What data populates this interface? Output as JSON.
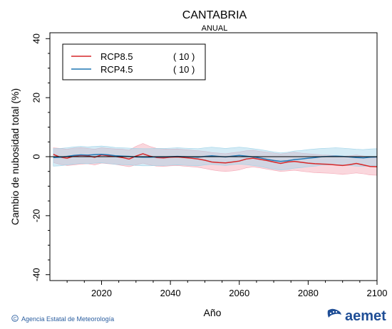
{
  "header": {
    "title": "CANTABRIA",
    "subtitle": "ANUAL"
  },
  "chart_data": {
    "type": "line",
    "ylabel": "Cambio de nubosidad total (%)",
    "xlabel": "Año",
    "xlim": [
      2005,
      2100
    ],
    "ylim": [
      -42,
      42
    ],
    "xticks": [
      2020,
      2040,
      2060,
      2080,
      2100
    ],
    "yticks": [
      40,
      20,
      0,
      -20,
      -40
    ],
    "grid": false,
    "legend_position": "top-left",
    "series": [
      {
        "name": "RCP8.5",
        "count": "( 10 )",
        "color": "#d62728",
        "band_color": "#f4a6b4",
        "x": [
          2006,
          2008,
          2010,
          2012,
          2014,
          2016,
          2018,
          2020,
          2022,
          2024,
          2026,
          2028,
          2030,
          2032,
          2034,
          2036,
          2038,
          2040,
          2042,
          2044,
          2046,
          2048,
          2050,
          2052,
          2054,
          2056,
          2058,
          2060,
          2062,
          2064,
          2066,
          2068,
          2070,
          2072,
          2074,
          2076,
          2078,
          2080,
          2082,
          2084,
          2086,
          2088,
          2090,
          2092,
          2094,
          2096,
          2098,
          2100
        ],
        "y": [
          0.8,
          -0.2,
          -0.5,
          0.2,
          0.4,
          0.3,
          -0.2,
          0.6,
          0.3,
          0.1,
          -0.3,
          -0.8,
          0.2,
          1.0,
          0.2,
          -0.3,
          -0.4,
          -0.2,
          -0.1,
          -0.3,
          -0.5,
          -0.8,
          -1.2,
          -1.8,
          -2.0,
          -2.1,
          -1.8,
          -1.5,
          -0.8,
          -0.5,
          -0.9,
          -1.3,
          -1.8,
          -2.3,
          -1.8,
          -1.6,
          -1.9,
          -2.2,
          -2.4,
          -2.5,
          -2.6,
          -2.8,
          -3.0,
          -2.7,
          -2.3,
          -2.8,
          -3.3,
          -3.4
        ],
        "upper": [
          3.0,
          2.8,
          2.5,
          2.9,
          3.1,
          2.8,
          2.5,
          3.0,
          2.8,
          2.6,
          2.5,
          2.2,
          3.5,
          4.5,
          3.5,
          2.8,
          2.6,
          2.5,
          2.6,
          2.4,
          2.2,
          2.0,
          1.8,
          1.4,
          1.2,
          1.0,
          1.3,
          1.6,
          2.0,
          2.2,
          1.8,
          1.5,
          1.2,
          0.9,
          1.2,
          1.5,
          1.2,
          1.0,
          0.8,
          0.6,
          0.5,
          0.3,
          0.1,
          0.3,
          0.6,
          0.2,
          -0.2,
          -0.5
        ],
        "lower": [
          -2.0,
          -2.6,
          -3.0,
          -2.8,
          -2.5,
          -2.4,
          -2.8,
          -2.2,
          -2.4,
          -2.6,
          -3.0,
          -3.4,
          -2.8,
          -2.2,
          -2.8,
          -3.2,
          -3.3,
          -3.1,
          -3.0,
          -3.2,
          -3.4,
          -3.6,
          -4.0,
          -4.5,
          -4.8,
          -5.0,
          -4.8,
          -4.5,
          -3.8,
          -3.5,
          -3.8,
          -4.2,
          -4.6,
          -5.0,
          -4.8,
          -4.6,
          -4.9,
          -5.2,
          -5.4,
          -5.5,
          -5.6,
          -5.8,
          -6.0,
          -5.8,
          -5.5,
          -5.8,
          -6.2,
          -6.3
        ]
      },
      {
        "name": "RCP4.5",
        "count": "( 10 )",
        "color": "#1f77b4",
        "band_color": "#9fd3e8",
        "x": [
          2006,
          2008,
          2010,
          2012,
          2014,
          2016,
          2018,
          2020,
          2022,
          2024,
          2026,
          2028,
          2030,
          2032,
          2034,
          2036,
          2038,
          2040,
          2042,
          2044,
          2046,
          2048,
          2050,
          2052,
          2054,
          2056,
          2058,
          2060,
          2062,
          2064,
          2066,
          2068,
          2070,
          2072,
          2074,
          2076,
          2078,
          2080,
          2082,
          2084,
          2086,
          2088,
          2090,
          2092,
          2094,
          2096,
          2098,
          2100
        ],
        "y": [
          -0.3,
          -0.2,
          0.1,
          0.4,
          0.6,
          0.5,
          0.7,
          0.8,
          0.6,
          0.3,
          0.2,
          0.1,
          -0.1,
          -0.2,
          -0.2,
          -0.1,
          -0.1,
          0.0,
          0.1,
          0.0,
          -0.1,
          -0.2,
          0.1,
          0.3,
          0.1,
          -0.1,
          0.2,
          0.4,
          0.2,
          -0.1,
          -0.4,
          -0.9,
          -1.3,
          -1.6,
          -1.4,
          -1.0,
          -0.8,
          -0.5,
          -0.3,
          0.0,
          0.1,
          0.2,
          0.1,
          -0.1,
          -0.3,
          -0.4,
          -0.2,
          -0.1
        ],
        "upper": [
          2.7,
          2.8,
          3.0,
          3.3,
          3.5,
          3.3,
          3.5,
          3.6,
          3.4,
          3.1,
          3.0,
          2.9,
          2.8,
          2.7,
          2.7,
          2.8,
          2.8,
          2.9,
          3.0,
          2.9,
          2.8,
          2.7,
          3.0,
          3.2,
          3.0,
          2.8,
          3.0,
          3.2,
          3.0,
          2.7,
          2.4,
          2.0,
          1.6,
          1.3,
          1.5,
          1.9,
          2.1,
          2.4,
          2.6,
          2.8,
          2.9,
          3.0,
          2.9,
          2.7,
          2.5,
          2.4,
          2.6,
          2.7
        ],
        "lower": [
          -3.2,
          -3.1,
          -2.8,
          -2.5,
          -2.3,
          -2.4,
          -2.2,
          -2.1,
          -2.3,
          -2.6,
          -2.7,
          -2.8,
          -3.0,
          -3.1,
          -3.1,
          -3.0,
          -3.0,
          -2.9,
          -2.8,
          -2.9,
          -3.0,
          -3.1,
          -2.8,
          -2.6,
          -2.8,
          -3.0,
          -2.7,
          -2.5,
          -2.7,
          -3.0,
          -3.3,
          -3.8,
          -4.2,
          -4.5,
          -4.3,
          -3.9,
          -3.7,
          -3.4,
          -3.2,
          -2.9,
          -2.8,
          -2.7,
          -2.8,
          -3.0,
          -3.2,
          -3.3,
          -3.1,
          -3.0
        ]
      }
    ]
  },
  "footer": {
    "credit": "Agencia Estatal de Meteorología",
    "brand": "aemet",
    "copyright_icon": "copyright-icon",
    "logo_icon": "aemet-logo-icon"
  }
}
